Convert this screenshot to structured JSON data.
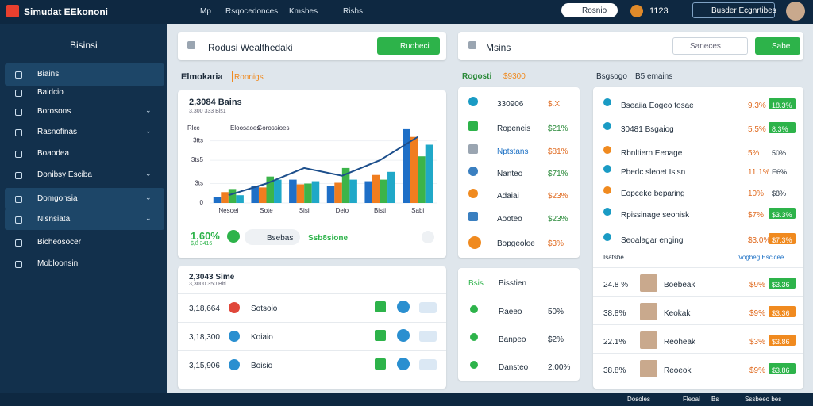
{
  "topbar": {
    "brand": "Simudat EEkononi",
    "nav": [
      "Mp",
      "Rsqocedonces",
      "Kmsbes",
      "Rishs"
    ],
    "pill": "Rosnio",
    "time": "1123",
    "account": "Busder Ecgnrtibes"
  },
  "sidebar": {
    "title": "Bisinsi",
    "items": [
      {
        "label": "Biains",
        "active": true,
        "expandable": false
      },
      {
        "label": "Baidcio",
        "active": false,
        "expandable": false
      },
      {
        "label": "Borosons",
        "active": false,
        "expandable": true
      },
      {
        "label": "Rasnofinas",
        "active": false,
        "expandable": true
      },
      {
        "label": "Boaodea",
        "active": false,
        "expandable": false
      },
      {
        "label": "Donibsy Esciba",
        "active": false,
        "expandable": true
      },
      {
        "label": "Domgonsia",
        "active": true,
        "expandable": true
      },
      {
        "label": "Nisnsiata",
        "active": true,
        "expandable": true
      },
      {
        "label": "Bicheosocer",
        "active": false,
        "expandable": false
      },
      {
        "label": "Mobloonsin",
        "active": false,
        "expandable": false
      }
    ]
  },
  "header_panel": {
    "title": "Rodusi Wealthedaki",
    "button": "Ruobeci"
  },
  "search_panel": {
    "title": "Msins",
    "search": "Saneces",
    "button": "Sabe"
  },
  "section_left": {
    "title": "Elmokaria",
    "dropdown": "Ronnigs"
  },
  "section_mid": {
    "title": "Rogosti",
    "amount": "$9300"
  },
  "section_right": {
    "title": "Bsgsogo",
    "subtitle": "B5 emains"
  },
  "chart_card": {
    "title": "2,3084 Bains",
    "subtitle": "3,300 333 Bis1",
    "chart_data": {
      "type": "bar",
      "legend_labels": [
        "Rlcc",
        "Eloosaoes",
        "Gorossioes"
      ],
      "categories": [
        "Nesoei",
        "Sote",
        "Sisi",
        "Deio",
        "Bisti",
        "Sabi"
      ],
      "series": [
        {
          "color": "#1e6fc7",
          "values": [
            8,
            22,
            30,
            22,
            28,
            95
          ]
        },
        {
          "color": "#f07d1f",
          "values": [
            14,
            20,
            24,
            26,
            36,
            85
          ]
        },
        {
          "color": "#3cb44a",
          "values": [
            18,
            34,
            25,
            45,
            30,
            60
          ]
        },
        {
          "color": "#20a8c8",
          "values": [
            10,
            30,
            28,
            30,
            40,
            75
          ]
        }
      ],
      "line": {
        "color": "#1d4f8c",
        "values": [
          10,
          25,
          45,
          35,
          55,
          85
        ]
      },
      "ylim": [
        0,
        100
      ],
      "yticks": [
        {
          "value": 0,
          "label": "0"
        },
        {
          "value": 25,
          "label": "3ts"
        },
        {
          "value": 55,
          "label": "3ts5"
        },
        {
          "value": 80,
          "label": "3tts"
        }
      ]
    },
    "footer": {
      "stat": "1,60%",
      "stat_sub": "$,8 3416",
      "chip": "Bsebas",
      "link": "Ssb8sione"
    }
  },
  "list_card": {
    "title": "2,3043 Sime",
    "subtitle": "3,3000 350 Biti",
    "rows": [
      {
        "amount": "3,18,664",
        "code": "Sotsoio"
      },
      {
        "amount": "3,18,300",
        "code": "Koiaio"
      },
      {
        "amount": "3,15,906",
        "code": "Boisio"
      }
    ]
  },
  "mid_list": {
    "rows": [
      {
        "name": "330906",
        "value": "$.X"
      },
      {
        "name": "Ropeneis",
        "value": "$21%"
      },
      {
        "name": "Nptstans",
        "value": "$81%"
      },
      {
        "name": "Nanteo",
        "value": "$71%"
      },
      {
        "name": "Adaiai",
        "value": "$23%"
      },
      {
        "name": "Aooteo",
        "value": "$23%"
      },
      {
        "name": "Bopgeoloe",
        "value": "$3%"
      }
    ]
  },
  "mid_card": {
    "label": "Bsis",
    "title": "Bisstien",
    "rows": [
      {
        "name": "Raeeo",
        "value": "50%"
      },
      {
        "name": "Banpeo",
        "value": "$2%"
      },
      {
        "name": "Dansteo",
        "value": "2.00%"
      }
    ]
  },
  "right_list": {
    "rows": [
      {
        "name": "Bseaiia Eogeo tosae",
        "pct": "9.3%",
        "badge": "18.3%",
        "badge_color": "#2db34a"
      },
      {
        "name": "30481 Bsgaiog",
        "pct": "5.5%",
        "badge": "8.3%",
        "badge_color": "#2db34a"
      },
      {
        "name": "Rbnltiern Eeoage",
        "pct": "5%",
        "badge": "50%",
        "badge_color": "#ffffff"
      },
      {
        "name": "Pbedc sleoet Isisn",
        "pct": "11.1%",
        "badge": "E6%",
        "badge_color": "#ffffff"
      },
      {
        "name": "Eopceke beparing",
        "pct": "10%",
        "badge": "$8%",
        "badge_color": "#ffffff"
      },
      {
        "name": "Rpissinage seonisk",
        "pct": "$7%",
        "badge": "$3.3%",
        "badge_color": "#2db34a"
      },
      {
        "name": "Seoalagar enging",
        "pct": "$3.0%",
        "badge": "$7.3%",
        "badge_color": "#f08a1f"
      }
    ],
    "sub_left": "Isatsbe",
    "sub_right": "Vogbeg Esclcee",
    "people": [
      {
        "pct": "24.8 %",
        "name": "Boebeak",
        "value": "$9%",
        "badge": "$3.36",
        "badge_color": "#2db34a"
      },
      {
        "name": "Keokak",
        "pct": "38.8%",
        "value": "$9%",
        "badge": "$3.36",
        "badge_color": "#f08a1f"
      },
      {
        "pct": "22.1%",
        "name": "Reoheak",
        "value": "$3%",
        "badge": "$3.86",
        "badge_color": "#f08a1f"
      },
      {
        "pct": "38.8%",
        "name": "Reoeok",
        "value": "$9%",
        "badge": "$3.86",
        "badge_color": "#2db34a"
      }
    ]
  },
  "footer_bar": [
    "Dosoles",
    "Fleoal",
    "Bs",
    "Sssbeeo bes"
  ]
}
